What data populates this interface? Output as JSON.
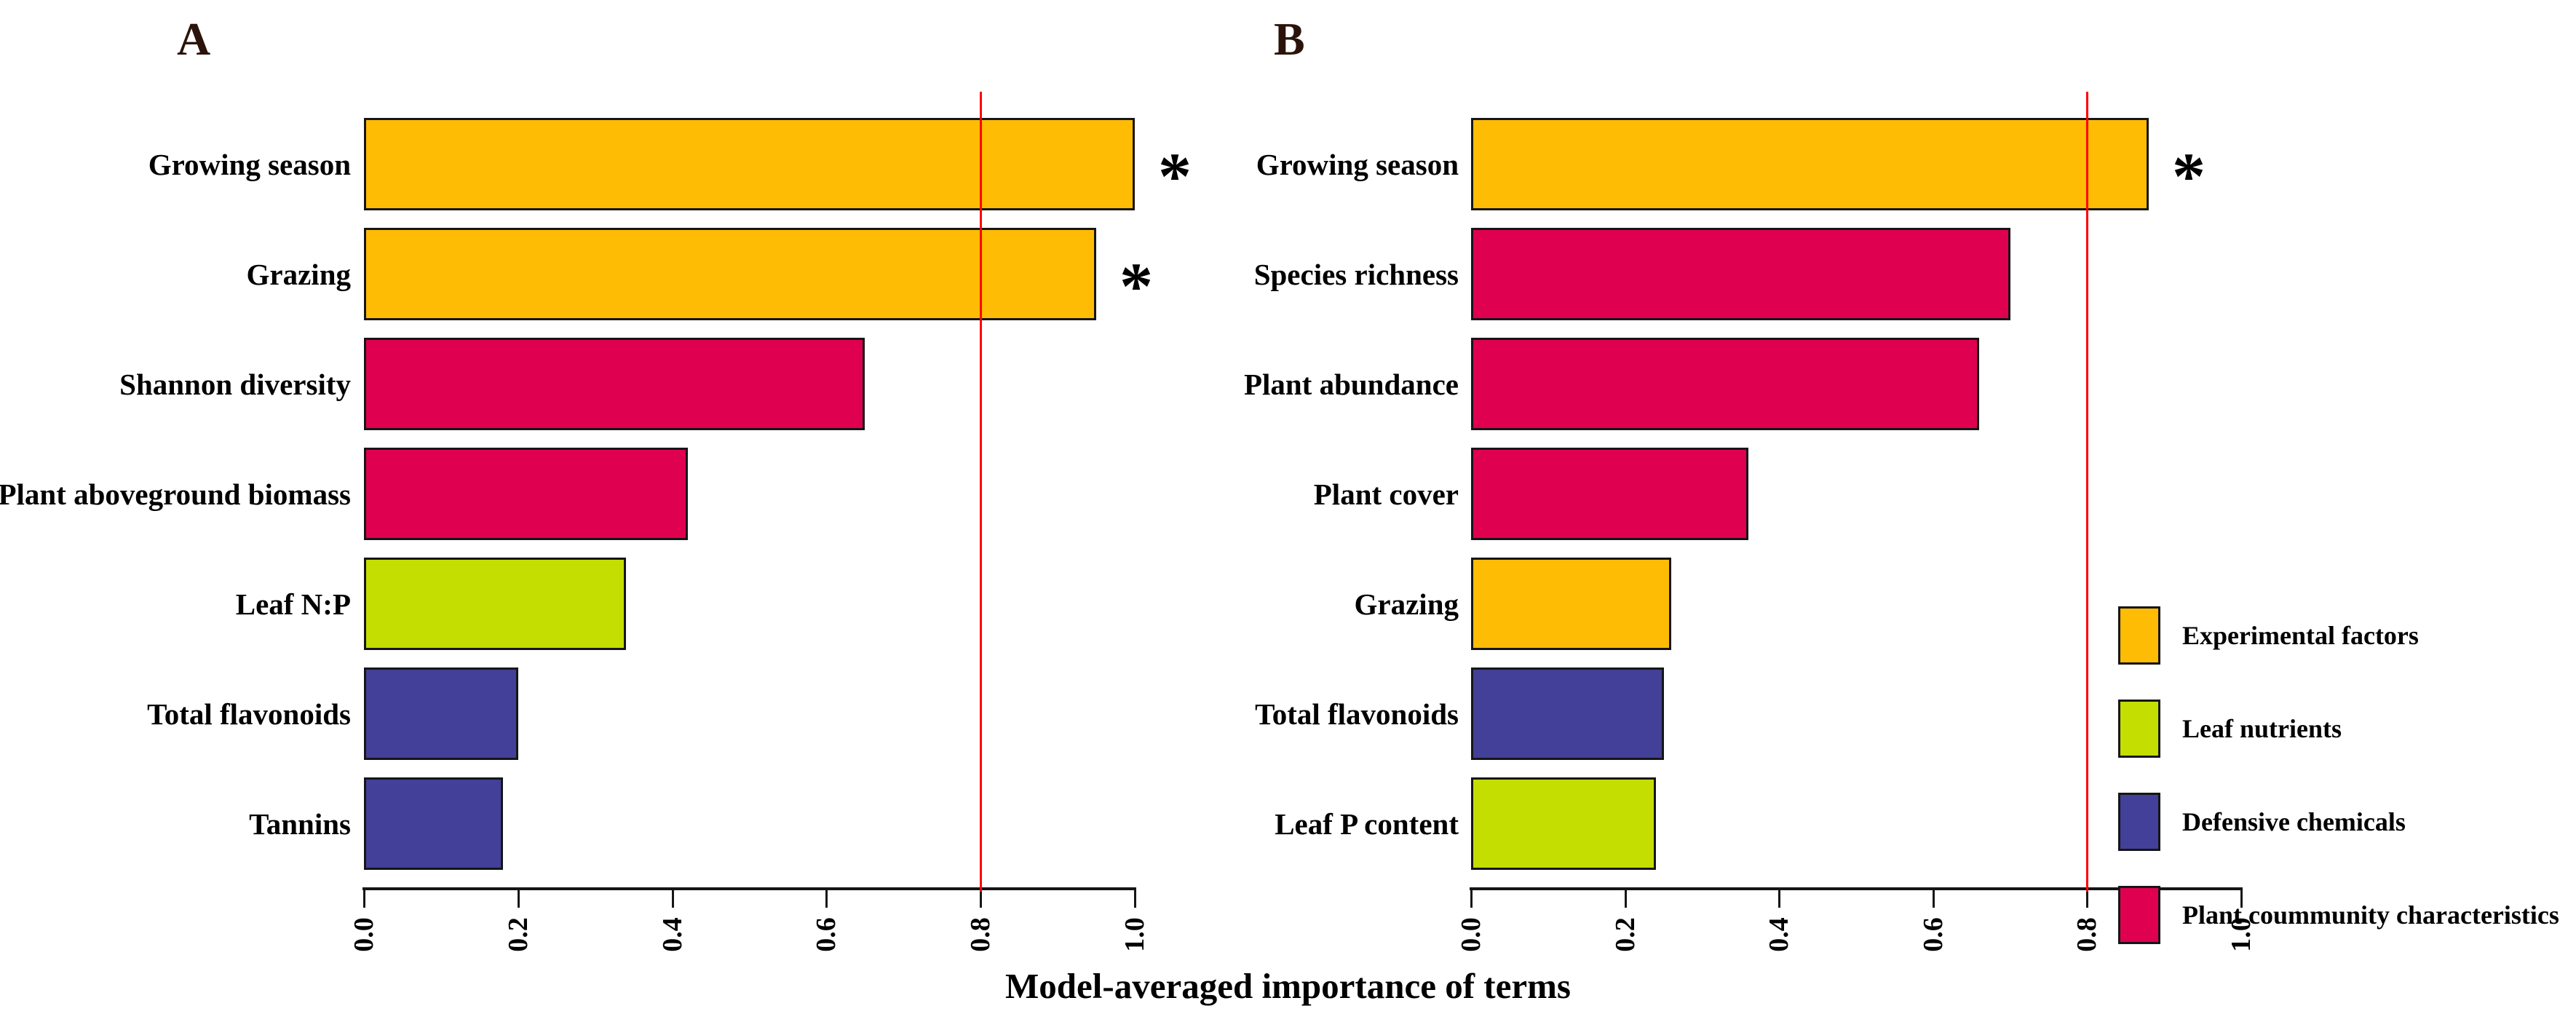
{
  "figure": {
    "xlabel": "Model-averaged importance of terms",
    "ref_line_value": 0.8,
    "colors": {
      "experimental": "#FFBC05",
      "leaf_nutrients": "#C3DE00",
      "defensive": "#434099",
      "community": "#E00050",
      "ref_line": "#FF0000",
      "panel_title": "#2B130B"
    },
    "star_symbol": "*"
  },
  "chart_data": [
    {
      "type": "bar",
      "orientation": "horizontal",
      "title": "A",
      "categories": [
        "Growing season",
        "Grazing",
        "Shannon diversity",
        "Plant aboveground biomass",
        "Leaf N:P",
        "Total flavonoids",
        "Tannins"
      ],
      "values": [
        1.0,
        0.95,
        0.65,
        0.42,
        0.34,
        0.2,
        0.18
      ],
      "groups": [
        "experimental",
        "experimental",
        "community",
        "community",
        "leaf_nutrients",
        "defensive",
        "defensive"
      ],
      "starred": [
        true,
        true,
        false,
        false,
        false,
        false,
        false
      ],
      "xlabel": "Model-averaged importance of terms",
      "xlim": [
        0,
        1
      ],
      "xticks": [
        0.0,
        0.2,
        0.4,
        0.6,
        0.8,
        1.0
      ],
      "xtick_labels": [
        "0.0",
        "0.2",
        "0.4",
        "0.6",
        "0.8",
        "1.0"
      ],
      "ref_line": 0.8,
      "grid": false,
      "legend_position": "none"
    },
    {
      "type": "bar",
      "orientation": "horizontal",
      "title": "B",
      "categories": [
        "Growing season",
        "Species richness",
        "Plant abundance",
        "Plant cover",
        "Grazing",
        "Total flavonoids",
        "Leaf P content"
      ],
      "values": [
        0.88,
        0.7,
        0.66,
        0.36,
        0.26,
        0.25,
        0.24
      ],
      "groups": [
        "experimental",
        "community",
        "community",
        "community",
        "experimental",
        "defensive",
        "leaf_nutrients"
      ],
      "starred": [
        true,
        false,
        false,
        false,
        false,
        false,
        false
      ],
      "xlabel": "Model-averaged importance of terms",
      "xlim": [
        0,
        1
      ],
      "xticks": [
        0.0,
        0.2,
        0.4,
        0.6,
        0.8,
        1.0
      ],
      "xtick_labels": [
        "0.0",
        "0.2",
        "0.4",
        "0.6",
        "0.8",
        "1.0"
      ],
      "ref_line": 0.8,
      "grid": false,
      "legend_position": "right"
    }
  ],
  "legend": {
    "items": [
      {
        "label": "Experimental factors",
        "group": "experimental"
      },
      {
        "label": "Leaf nutrients",
        "group": "leaf_nutrients"
      },
      {
        "label": "Defensive chemicals",
        "group": "defensive"
      },
      {
        "label": "Plant coummunity characteristics",
        "group": "community"
      }
    ]
  }
}
